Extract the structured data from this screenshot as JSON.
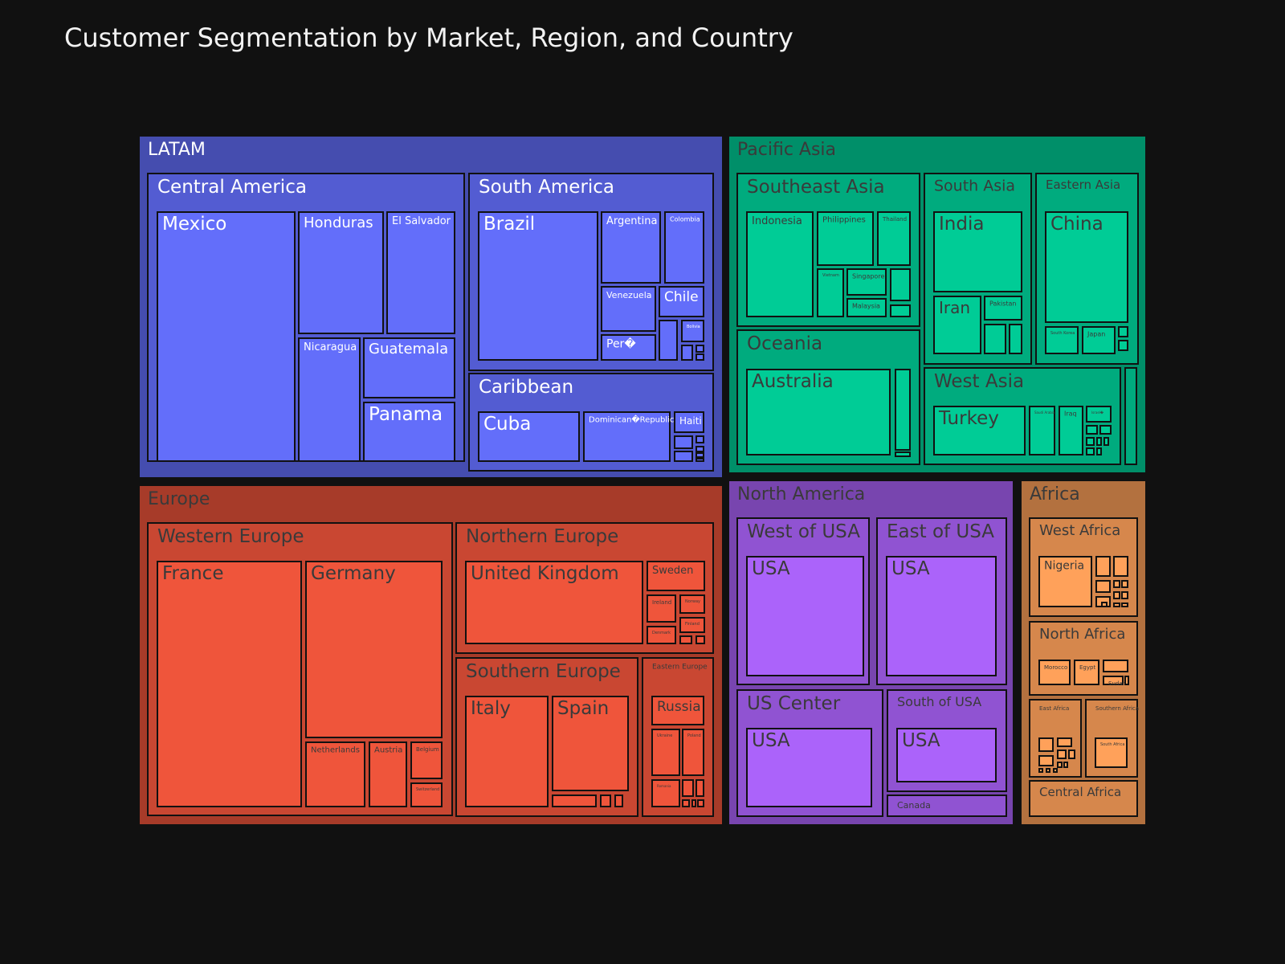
{
  "chart_data": {
    "type": "treemap",
    "title": "Customer Segmentation by Market, Region, and Country",
    "colors": {
      "LATAM": "#636efa",
      "Pacific Asia": "#00cc96",
      "Europe": "#ef553b",
      "North America": "#ab63fa",
      "Africa": "#ffa15a"
    },
    "markets": [
      {
        "name": "LATAM",
        "regions": [
          {
            "name": "Central America",
            "countries": [
              {
                "name": "Mexico"
              },
              {
                "name": "Honduras"
              },
              {
                "name": "El Salvador"
              },
              {
                "name": "Nicaragua"
              },
              {
                "name": "Guatemala"
              },
              {
                "name": "Panama"
              }
            ]
          },
          {
            "name": "South America",
            "countries": [
              {
                "name": "Brazil"
              },
              {
                "name": "Argentina"
              },
              {
                "name": "Colombia"
              },
              {
                "name": "Venezuela"
              },
              {
                "name": "Chile"
              },
              {
                "name": "Per�"
              },
              {
                "name": "Bolivia"
              },
              {
                "name": ""
              },
              {
                "name": ""
              },
              {
                "name": ""
              },
              {
                "name": ""
              }
            ]
          },
          {
            "name": "Caribbean",
            "countries": [
              {
                "name": "Cuba"
              },
              {
                "name": "Dominican�Republic"
              },
              {
                "name": "Haiti"
              },
              {
                "name": ""
              },
              {
                "name": ""
              },
              {
                "name": ""
              },
              {
                "name": ""
              },
              {
                "name": ""
              },
              {
                "name": ""
              }
            ]
          }
        ]
      },
      {
        "name": "Pacific Asia",
        "regions": [
          {
            "name": "Southeast Asia",
            "countries": [
              {
                "name": "Indonesia"
              },
              {
                "name": "Philippines"
              },
              {
                "name": "Thailand"
              },
              {
                "name": "Vietnam"
              },
              {
                "name": "Singapore"
              },
              {
                "name": "Malaysia"
              },
              {
                "name": ""
              },
              {
                "name": ""
              }
            ]
          },
          {
            "name": "Oceania",
            "countries": [
              {
                "name": "Australia"
              },
              {
                "name": ""
              },
              {
                "name": ""
              }
            ]
          },
          {
            "name": "South Asia",
            "countries": [
              {
                "name": "India"
              },
              {
                "name": "Iran"
              },
              {
                "name": "Pakistan"
              },
              {
                "name": ""
              },
              {
                "name": ""
              }
            ]
          },
          {
            "name": "Eastern Asia",
            "countries": [
              {
                "name": "China"
              },
              {
                "name": "South Korea"
              },
              {
                "name": "Japan"
              },
              {
                "name": ""
              },
              {
                "name": ""
              }
            ]
          },
          {
            "name": "West Asia",
            "countries": [
              {
                "name": "Turkey"
              },
              {
                "name": "Saudi Arabia"
              },
              {
                "name": "Iraq"
              },
              {
                "name": "Israel�"
              },
              {
                "name": ""
              },
              {
                "name": ""
              },
              {
                "name": ""
              },
              {
                "name": ""
              },
              {
                "name": ""
              },
              {
                "name": ""
              },
              {
                "name": ""
              }
            ]
          },
          {
            "name": "",
            "countries": []
          }
        ]
      },
      {
        "name": "Europe",
        "regions": [
          {
            "name": "Western Europe",
            "countries": [
              {
                "name": "France"
              },
              {
                "name": "Germany"
              },
              {
                "name": "Netherlands"
              },
              {
                "name": "Austria"
              },
              {
                "name": "Belgium"
              },
              {
                "name": "Switzerland"
              }
            ]
          },
          {
            "name": "Northern Europe",
            "countries": [
              {
                "name": "United Kingdom"
              },
              {
                "name": "Sweden"
              },
              {
                "name": "Ireland"
              },
              {
                "name": "Norway"
              },
              {
                "name": "Denmark"
              },
              {
                "name": "Finland"
              },
              {
                "name": ""
              },
              {
                "name": ""
              }
            ]
          },
          {
            "name": "Southern Europe",
            "countries": [
              {
                "name": "Italy"
              },
              {
                "name": "Spain"
              },
              {
                "name": ""
              },
              {
                "name": ""
              },
              {
                "name": ""
              },
              {
                "name": ""
              }
            ]
          },
          {
            "name": "Eastern Europe",
            "countries": [
              {
                "name": "Russia"
              },
              {
                "name": "Ukraine"
              },
              {
                "name": "Poland"
              },
              {
                "name": "Romania"
              },
              {
                "name": ""
              },
              {
                "name": ""
              },
              {
                "name": ""
              },
              {
                "name": ""
              },
              {
                "name": ""
              }
            ]
          }
        ]
      },
      {
        "name": "North America",
        "regions": [
          {
            "name": "West of USA",
            "countries": [
              {
                "name": "USA"
              }
            ]
          },
          {
            "name": "East of USA",
            "countries": [
              {
                "name": "USA"
              }
            ]
          },
          {
            "name": "US Center",
            "countries": [
              {
                "name": "USA"
              }
            ]
          },
          {
            "name": "South of  USA",
            "countries": [
              {
                "name": "USA"
              }
            ]
          },
          {
            "name": "Canada",
            "countries": []
          }
        ]
      },
      {
        "name": "Africa",
        "regions": [
          {
            "name": "West Africa",
            "countries": [
              {
                "name": "Nigeria"
              },
              {
                "name": ""
              },
              {
                "name": ""
              },
              {
                "name": ""
              },
              {
                "name": ""
              },
              {
                "name": ""
              },
              {
                "name": ""
              },
              {
                "name": ""
              },
              {
                "name": ""
              },
              {
                "name": ""
              },
              {
                "name": ""
              },
              {
                "name": ""
              }
            ]
          },
          {
            "name": "North Africa",
            "countries": [
              {
                "name": "Morocco"
              },
              {
                "name": "Egypt"
              },
              {
                "name": ""
              },
              {
                "name": "Sudan"
              },
              {
                "name": ""
              }
            ]
          },
          {
            "name": "East Africa",
            "countries": [
              {
                "name": ""
              },
              {
                "name": ""
              },
              {
                "name": ""
              },
              {
                "name": ""
              },
              {
                "name": ""
              },
              {
                "name": ""
              },
              {
                "name": ""
              },
              {
                "name": ""
              },
              {
                "name": ""
              },
              {
                "name": ""
              }
            ]
          },
          {
            "name": "Southern Africa",
            "countries": [
              {
                "name": "South Africa"
              }
            ]
          },
          {
            "name": "Central Africa",
            "countries": []
          }
        ]
      }
    ]
  }
}
